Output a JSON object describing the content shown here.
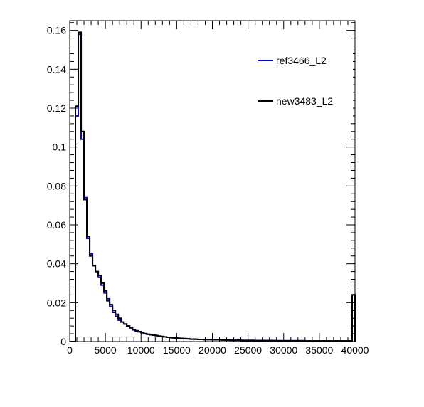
{
  "chart_data": {
    "type": "histogram",
    "x_range": [
      0,
      40000
    ],
    "y_range": [
      0,
      0.165
    ],
    "bin_width": 400,
    "x_ticks": [
      0,
      5000,
      10000,
      15000,
      20000,
      25000,
      30000,
      35000,
      40000
    ],
    "x_tick_labels": [
      "0",
      "5000",
      "10000",
      "15000",
      "20000",
      "25000",
      "30000",
      "35000",
      "40000"
    ],
    "y_ticks": [
      0,
      0.02,
      0.04,
      0.06,
      0.08,
      0.1,
      0.12,
      0.14,
      0.16
    ],
    "y_tick_labels": [
      "0",
      "0.02",
      "0.04",
      "0.06",
      "0.08",
      "0.1",
      "0.12",
      "0.14",
      "0.16"
    ],
    "legend_position": "top-right",
    "series": [
      {
        "name": "ref3466_L2",
        "color": "#0000cc",
        "values": [
          0.0,
          0.0,
          0.116,
          0.158,
          0.104,
          0.074,
          0.053,
          0.045,
          0.039,
          0.036,
          0.033,
          0.029,
          0.025,
          0.022,
          0.018,
          0.015,
          0.013,
          0.011,
          0.01,
          0.009,
          0.008,
          0.007,
          0.006,
          0.0055,
          0.005,
          0.0045,
          0.004,
          0.0037,
          0.0035,
          0.0033,
          0.003,
          0.0028,
          0.0026,
          0.0024,
          0.0022,
          0.002,
          0.0019,
          0.0018,
          0.0017,
          0.0016,
          0.0015,
          0.0014,
          0.0013,
          0.0012,
          0.0012,
          0.0011,
          0.0011,
          0.001,
          0.001,
          0.001,
          0.0009,
          0.0009,
          0.0009,
          0.0008,
          0.0008,
          0.0008,
          0.0007,
          0.0007,
          0.0007,
          0.0007,
          0.0006,
          0.0006,
          0.0006,
          0.0006,
          0.0006,
          0.0005,
          0.0005,
          0.0005,
          0.0005,
          0.0005,
          0.0005,
          0.0005,
          0.0004,
          0.0004,
          0.0004,
          0.0004,
          0.0004,
          0.0004,
          0.0004,
          0.0004,
          0.0004,
          0.0004,
          0.0003,
          0.0003,
          0.0003,
          0.0003,
          0.0003,
          0.0003,
          0.0003,
          0.0003,
          0.0003,
          0.0003,
          0.0003,
          0.0003,
          0.0003,
          0.0003,
          0.0003,
          0.0003,
          0.0003,
          0.024
        ]
      },
      {
        "name": "new3483_L2",
        "color": "#000000",
        "values": [
          0.0,
          0.0,
          0.121,
          0.159,
          0.108,
          0.073,
          0.054,
          0.044,
          0.039,
          0.036,
          0.034,
          0.03,
          0.026,
          0.021,
          0.019,
          0.016,
          0.014,
          0.012,
          0.01,
          0.009,
          0.008,
          0.0072,
          0.0062,
          0.0056,
          0.0051,
          0.0046,
          0.0041,
          0.0038,
          0.0035,
          0.0033,
          0.0031,
          0.0028,
          0.0026,
          0.0024,
          0.0022,
          0.0021,
          0.0019,
          0.0018,
          0.0017,
          0.0016,
          0.0015,
          0.0014,
          0.0013,
          0.0013,
          0.0012,
          0.0011,
          0.0011,
          0.001,
          0.001,
          0.001,
          0.0009,
          0.0009,
          0.0009,
          0.0008,
          0.0008,
          0.0008,
          0.0007,
          0.0007,
          0.0007,
          0.0007,
          0.0006,
          0.0006,
          0.0006,
          0.0006,
          0.0006,
          0.0005,
          0.0005,
          0.0005,
          0.0005,
          0.0005,
          0.0005,
          0.0005,
          0.0004,
          0.0004,
          0.0004,
          0.0004,
          0.0004,
          0.0004,
          0.0004,
          0.0004,
          0.0004,
          0.0004,
          0.0003,
          0.0003,
          0.0003,
          0.0003,
          0.0003,
          0.0003,
          0.0003,
          0.0003,
          0.0003,
          0.0003,
          0.0003,
          0.0003,
          0.0003,
          0.0003,
          0.0003,
          0.0003,
          0.0003,
          0.024
        ]
      }
    ]
  }
}
